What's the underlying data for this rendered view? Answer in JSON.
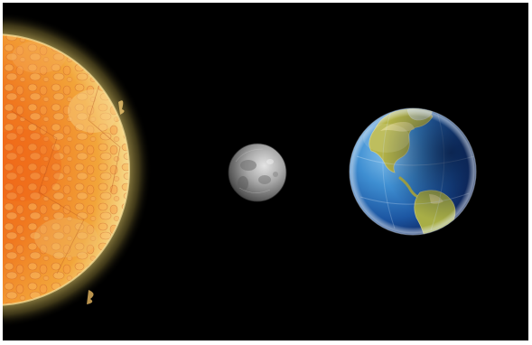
{
  "scene": {
    "background_color": "#000000",
    "border_color": "#ffffff",
    "bodies": [
      {
        "name": "sun",
        "colors": {
          "core": "#f56a1a",
          "mid": "#f08a2a",
          "rim": "#f6d58a",
          "glow": "#c9b15a"
        }
      },
      {
        "name": "moon",
        "colors": {
          "light": "#d8d8d8",
          "mid": "#9a9a9a",
          "dark": "#4a4a4a"
        }
      },
      {
        "name": "earth",
        "colors": {
          "ocean_light": "#5fa8e0",
          "ocean": "#1f5fa8",
          "ocean_dark": "#0a1f55",
          "land": "#b8b84a",
          "land_light": "#e3d98a"
        }
      }
    ]
  }
}
